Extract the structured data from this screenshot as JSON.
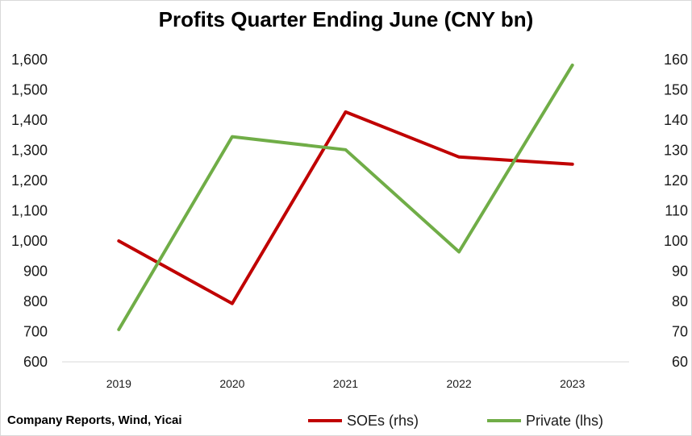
{
  "chart_data": {
    "type": "line",
    "title": "Profits Quarter Ending June (CNY bn)",
    "categories": [
      "2019",
      "2020",
      "2021",
      "2022",
      "2023"
    ],
    "y_left": {
      "min": 600,
      "max": 1600,
      "step": 100,
      "ticks": [
        "600",
        "700",
        "800",
        "900",
        "1,000",
        "1,100",
        "1,200",
        "1,300",
        "1,400",
        "1,500",
        "1,600"
      ]
    },
    "y_right": {
      "min": 60,
      "max": 160,
      "step": 10,
      "ticks": [
        "60",
        "70",
        "80",
        "90",
        "100",
        "110",
        "120",
        "130",
        "140",
        "150",
        "160"
      ]
    },
    "series": [
      {
        "name": "SOEs (rhs)",
        "axis": "right",
        "color": "#c00000",
        "values": [
          100,
          79.3,
          142.7,
          127.8,
          125.4
        ]
      },
      {
        "name": "Private (lhs)",
        "axis": "left",
        "color": "#70ad47",
        "values": [
          707,
          1345,
          1302,
          964,
          1582
        ]
      }
    ],
    "grid": false,
    "legend_position": "bottom-right"
  },
  "source": "Company Reports, Wind, Yicai"
}
